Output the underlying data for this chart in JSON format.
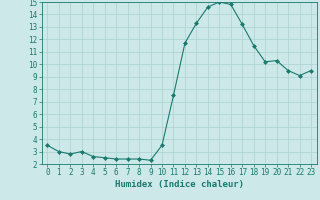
{
  "x": [
    0,
    1,
    2,
    3,
    4,
    5,
    6,
    7,
    8,
    9,
    10,
    11,
    12,
    13,
    14,
    15,
    16,
    17,
    18,
    19,
    20,
    21,
    22,
    23
  ],
  "y": [
    3.5,
    3.0,
    2.8,
    3.0,
    2.6,
    2.5,
    2.4,
    2.4,
    2.4,
    2.3,
    3.5,
    7.5,
    11.7,
    13.3,
    14.6,
    15.0,
    14.8,
    13.2,
    11.5,
    10.2,
    10.3,
    9.5,
    9.1,
    9.5
  ],
  "line_color": "#1a7a6e",
  "marker": "D",
  "marker_size": 2.0,
  "bg_color": "#cce8e8",
  "grid_color": "#b0d4d4",
  "xlabel": "Humidex (Indice chaleur)",
  "xlim": [
    -0.5,
    23.5
  ],
  "ylim": [
    2,
    15
  ],
  "yticks": [
    2,
    3,
    4,
    5,
    6,
    7,
    8,
    9,
    10,
    11,
    12,
    13,
    14,
    15
  ],
  "xticks": [
    0,
    1,
    2,
    3,
    4,
    5,
    6,
    7,
    8,
    9,
    10,
    11,
    12,
    13,
    14,
    15,
    16,
    17,
    18,
    19,
    20,
    21,
    22,
    23
  ],
  "tick_fontsize": 5.5,
  "label_fontsize": 6.5
}
